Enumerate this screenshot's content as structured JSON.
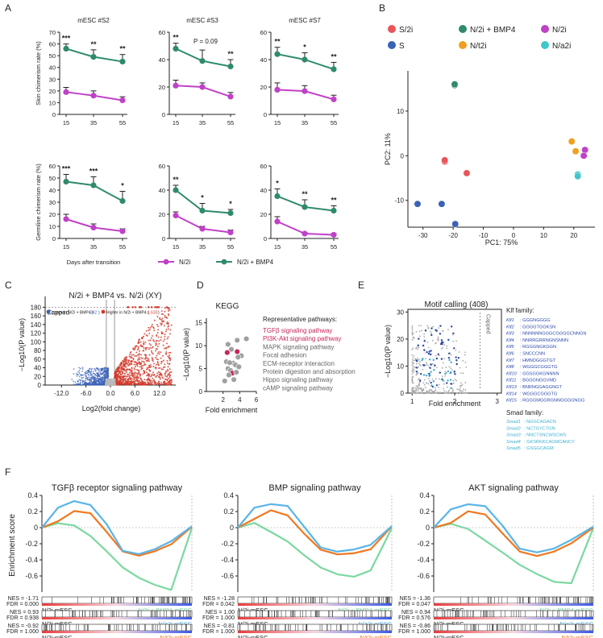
{
  "figure": {
    "panel_letters": [
      "A",
      "B",
      "C",
      "D",
      "E",
      "F"
    ],
    "colors": {
      "n2i": "#c040c8",
      "bmp4": "#2e8b6a",
      "s2i": "#e8555a",
      "s": "#3a62b8",
      "nt2i": "#f0a020",
      "na2i": "#40c8c8",
      "lower": "#3a62b8",
      "higher": "#d23a2a",
      "gsea_blue": "#5ab4e6",
      "gsea_orange": "#f07820",
      "gsea_green": "#7ad8a0",
      "kegg_red": "#c8285a",
      "kegg_gray": "#a0a0a0",
      "klf_blue": "#2d4aa8",
      "smad_cyan": "#40b0d0"
    }
  },
  "panelA": {
    "column_titles": [
      "mESC #S2",
      "mESC #S3",
      "mESC #S7"
    ],
    "row_ylabels": [
      "Skin chimerism rate (%)",
      "Germline chimerism rate (%)"
    ],
    "xlabel": "Days after transition",
    "xticks": [
      "15",
      "35",
      "55"
    ],
    "legend": [
      "N/2i",
      "N/2i + BMP4"
    ],
    "annotation_p": "P = 0.09"
  },
  "chart_data": [
    {
      "type": "line",
      "id": "A-skin-S2",
      "title": "mESC #S2",
      "ylabel": "Skin chimerism rate (%)",
      "ylim": [
        0,
        70
      ],
      "yticks": [
        0,
        10,
        20,
        30,
        40,
        50,
        60,
        70
      ],
      "x": [
        "15",
        "35",
        "55"
      ],
      "series": [
        {
          "name": "N/2i + BMP4",
          "values": [
            56,
            49,
            45
          ],
          "err": [
            4,
            6,
            6
          ]
        },
        {
          "name": "N/2i",
          "values": [
            19,
            16,
            12
          ],
          "err": [
            4,
            4,
            3
          ]
        }
      ],
      "sig": [
        "***",
        "**",
        "**"
      ]
    },
    {
      "type": "line",
      "id": "A-skin-S3",
      "title": "mESC #S3",
      "ylim": [
        0,
        60
      ],
      "yticks": [
        0,
        20,
        40,
        60
      ],
      "x": [
        "15",
        "35",
        "55"
      ],
      "series": [
        {
          "name": "N/2i + BMP4",
          "values": [
            48,
            39,
            35
          ],
          "err": [
            4,
            8,
            5
          ]
        },
        {
          "name": "N/2i",
          "values": [
            21,
            20,
            13
          ],
          "err": [
            4,
            3,
            3
          ]
        }
      ],
      "sig": [
        "**",
        "P = 0.09",
        "**"
      ]
    },
    {
      "type": "line",
      "id": "A-skin-S7",
      "title": "mESC #S7",
      "ylim": [
        0,
        60
      ],
      "yticks": [
        0,
        20,
        40,
        60
      ],
      "x": [
        "15",
        "35",
        "55"
      ],
      "series": [
        {
          "name": "N/2i + BMP4",
          "values": [
            44,
            40,
            33
          ],
          "err": [
            5,
            5,
            5
          ]
        },
        {
          "name": "N/2i",
          "values": [
            18,
            17,
            11
          ],
          "err": [
            5,
            4,
            3
          ]
        }
      ],
      "sig": [
        "**",
        "*",
        "**"
      ]
    },
    {
      "type": "line",
      "id": "A-germ-S2",
      "ylabel": "Germline chimerism rate (%)",
      "ylim": [
        0,
        60
      ],
      "yticks": [
        0,
        10,
        20,
        30,
        40,
        50,
        60
      ],
      "x": [
        "15",
        "35",
        "55"
      ],
      "series": [
        {
          "name": "N/2i + BMP4",
          "values": [
            47,
            44,
            31
          ],
          "err": [
            6,
            7,
            8
          ]
        },
        {
          "name": "N/2i",
          "values": [
            16,
            9,
            6
          ],
          "err": [
            4,
            3,
            2
          ]
        }
      ],
      "sig": [
        "***",
        "***",
        "*"
      ]
    },
    {
      "type": "line",
      "id": "A-germ-S3",
      "ylim": [
        0,
        60
      ],
      "yticks": [
        0,
        20,
        40,
        60
      ],
      "x": [
        "15",
        "35",
        "55"
      ],
      "series": [
        {
          "name": "N/2i + BMP4",
          "values": [
            40,
            23,
            21
          ],
          "err": [
            4,
            6,
            3
          ]
        },
        {
          "name": "N/2i",
          "values": [
            19,
            8,
            5
          ],
          "err": [
            3,
            2,
            2
          ]
        }
      ],
      "sig": [
        "**",
        "*",
        "*"
      ]
    },
    {
      "type": "line",
      "id": "A-germ-S7",
      "ylim": [
        0,
        60
      ],
      "yticks": [
        0,
        20,
        40,
        60
      ],
      "x": [
        "15",
        "35",
        "55"
      ],
      "series": [
        {
          "name": "N/2i + BMP4",
          "values": [
            35,
            26,
            23
          ],
          "err": [
            6,
            6,
            4
          ]
        },
        {
          "name": "N/2i",
          "values": [
            14,
            4,
            3
          ],
          "err": [
            4,
            1,
            1
          ]
        }
      ],
      "sig": [
        "*",
        "**",
        "**"
      ]
    },
    {
      "type": "scatter",
      "id": "B-pca",
      "xlabel": "PC1: 75%",
      "ylabel": "PC2: 11%",
      "xlim": [
        -35,
        27
      ],
      "ylim": [
        -16,
        19
      ],
      "xticks": [
        -30,
        -20,
        -10,
        0,
        10,
        20
      ],
      "yticks": [
        -10,
        0,
        10
      ],
      "legend": [
        {
          "name": "S/2i",
          "color": "#e8555a"
        },
        {
          "name": "N/2i + BMP4",
          "color": "#2e8b6a"
        },
        {
          "name": "N/2i",
          "color": "#c040c8"
        },
        {
          "name": "S",
          "color": "#3a62b8"
        },
        {
          "name": "N/t2i",
          "color": "#f0a020"
        },
        {
          "name": "N/a2i",
          "color": "#40c8c8"
        }
      ],
      "points": [
        {
          "group": "N/2i + BMP4",
          "x": -19.5,
          "y": 15.8
        },
        {
          "group": "N/2i + BMP4",
          "x": -19.5,
          "y": 16.0
        },
        {
          "group": "S/2i",
          "x": -22.8,
          "y": -1.3
        },
        {
          "group": "S/2i",
          "x": -22.8,
          "y": -1.0
        },
        {
          "group": "S/2i",
          "x": -15.5,
          "y": -3.9
        },
        {
          "group": "S",
          "x": -31.8,
          "y": -10.8
        },
        {
          "group": "S",
          "x": -23.8,
          "y": -10.8
        },
        {
          "group": "S",
          "x": -19.3,
          "y": -15.3
        },
        {
          "group": "N/t2i",
          "x": 19.3,
          "y": 3.2
        },
        {
          "group": "N/t2i",
          "x": 20.6,
          "y": 1.0
        },
        {
          "group": "N/2i",
          "x": 23.7,
          "y": 1.3
        },
        {
          "group": "N/2i",
          "x": 23.3,
          "y": 0.0
        },
        {
          "group": "N/a2i",
          "x": 21.3,
          "y": -4.2
        },
        {
          "group": "N/a2i",
          "x": 21.3,
          "y": -4.6
        }
      ]
    },
    {
      "type": "scatter",
      "id": "C-volcano",
      "title": "N/2i + BMP4 vs. N/2i (XY)",
      "xlabel": "Log2(fold change)",
      "ylabel": "−Log10(P value)",
      "xticks": [
        -12,
        -6,
        0,
        6,
        12
      ],
      "yticks": [
        0,
        20,
        40,
        60,
        80,
        100,
        120,
        140,
        160,
        180
      ],
      "xlim": [
        -16,
        16
      ],
      "ylim": [
        0,
        190
      ],
      "legend": [
        {
          "name": "Lower in N/2i + BMP4",
          "count": "342"
        },
        {
          "name": "Higher in N/2i + BMP4",
          "count": "1,633"
        }
      ],
      "capped_label": "Capped"
    },
    {
      "type": "scatter",
      "id": "D-kegg",
      "title": "KEGG",
      "xlabel": "Fold enrichment",
      "ylabel": "−Log10(P value)",
      "xlim": [
        0,
        6
      ],
      "ylim": [
        0,
        16
      ],
      "xticks": [
        2,
        4,
        6
      ],
      "yticks": [
        0,
        5,
        10,
        15
      ],
      "points": [
        {
          "x": 3.7,
          "y": 11.2,
          "highlight": false
        },
        {
          "x": 4.8,
          "y": 11.5,
          "highlight": false
        },
        {
          "x": 2.6,
          "y": 10.3,
          "highlight": false
        },
        {
          "x": 3.0,
          "y": 9.2,
          "highlight": false
        },
        {
          "x": 2.5,
          "y": 8.5,
          "highlight": true
        },
        {
          "x": 3.7,
          "y": 8.7,
          "highlight": true
        },
        {
          "x": 4.2,
          "y": 7.8,
          "highlight": false
        },
        {
          "x": 3.8,
          "y": 7.5,
          "highlight": false
        },
        {
          "x": 2.4,
          "y": 6.5,
          "highlight": false
        },
        {
          "x": 3.2,
          "y": 6.2,
          "highlight": false
        },
        {
          "x": 2.8,
          "y": 6.3,
          "highlight": false
        },
        {
          "x": 3.5,
          "y": 5.8,
          "highlight": false
        },
        {
          "x": 3.9,
          "y": 5.4,
          "highlight": false
        },
        {
          "x": 2.6,
          "y": 5.0,
          "highlight": false
        },
        {
          "x": 2.9,
          "y": 4.6,
          "highlight": false
        },
        {
          "x": 3.1,
          "y": 4.0,
          "highlight": true
        },
        {
          "x": 3.6,
          "y": 4.2,
          "highlight": false
        },
        {
          "x": 2.2,
          "y": 2.3,
          "highlight": false
        },
        {
          "x": 3.3,
          "y": 2.6,
          "highlight": false
        },
        {
          "x": 2.7,
          "y": 3.6,
          "highlight": false
        }
      ],
      "legend_title": "Representative pathways:",
      "pathways": [
        {
          "name": "TGFβ signaling pathway",
          "highlight": true
        },
        {
          "name": "PI3K-Akt signaling pathway",
          "highlight": true
        },
        {
          "name": "MAPK signaling pathway",
          "highlight": false
        },
        {
          "name": "Focal adhesion",
          "highlight": false
        },
        {
          "name": "ECM-receptor interaction",
          "highlight": false
        },
        {
          "name": "Protein digestion and absorption",
          "highlight": false
        },
        {
          "name": "Hippo signaling pathway",
          "highlight": false
        },
        {
          "name": "cAMP signaling pathway",
          "highlight": false
        }
      ]
    },
    {
      "type": "scatter",
      "id": "E-motif",
      "title": "Motif calling (408)",
      "xlabel": "Fold enrichment",
      "ylabel": "−Log10(P value)",
      "xlim": [
        0.9,
        3.1
      ],
      "ylim": [
        0,
        31
      ],
      "xticks": [
        1,
        2,
        3
      ],
      "yticks": [
        0,
        10,
        20,
        30
      ],
      "capped_label": "Capped",
      "klf_title": "Klf family:",
      "klf": [
        {
          "gene": "Klf1",
          "motif": "GGGNGGGG"
        },
        {
          "gene": "Klf2",
          "motif": "GGGGTGGKSN"
        },
        {
          "gene": "Klf3",
          "motif": "NNNNNNGGGCGGGGCNNGN"
        },
        {
          "gene": "Klf4",
          "motif": "NNRRGRRNGNSNNN"
        },
        {
          "gene": "Klf5",
          "motif": "RGGGNGKGGN"
        },
        {
          "gene": "Klf6",
          "motif": "SNCCCNN"
        },
        {
          "gene": "Klf7",
          "motif": "HMNDGGGTGT"
        },
        {
          "gene": "Klf8",
          "motif": "WGGGCGGGTG"
        },
        {
          "gene": "Klf10",
          "motif": "GGSGGKGNNNN"
        },
        {
          "gene": "Klf11",
          "motif": "BGGGNGGVMD"
        },
        {
          "gene": "Klf13",
          "motif": "BNRNGGAGGNGT"
        },
        {
          "gene": "Klf14",
          "motif": "WGGGCGGGTG"
        },
        {
          "gene": "Klf15",
          "motif": "RGGGMGGRGNNGGGGNGG"
        }
      ],
      "smad_title": "Smad family:",
      "smad": [
        {
          "gene": "Smad1",
          "motif": "NGGCAGACN"
        },
        {
          "gene": "Smad2",
          "motif": "NCTGYCTGN"
        },
        {
          "gene": "Smad3",
          "motif": "NNCTSNCWSCWS"
        },
        {
          "gene": "Smad4",
          "motif": "GKSRKKCAGMCANCY"
        },
        {
          "gene": "Smad5",
          "motif": "GSGGCAGM"
        }
      ]
    },
    {
      "type": "line",
      "id": "F-tgfb",
      "title": "TGFβ receptor signaling pathway",
      "ylabel": "Enrichment score",
      "ylim": [
        -0.8,
        0.4
      ],
      "yticks": [
        "0.4",
        "0.2",
        "0",
        "-0.2",
        "-0.4",
        "-0.6"
      ],
      "stats": [
        {
          "nes": "NES = -1.71",
          "fdr": "FDR = 0.000",
          "left": "N/2i-mESC",
          "right": "N/2i + BMP4-mESC"
        },
        {
          "nes": "NES = 0.93",
          "fdr": "FDR = 0.938",
          "left": "N/2i-mESC",
          "right": "N/a2i-mESC"
        },
        {
          "nes": "NES = -0.92",
          "fdr": "FDR = 1.000",
          "left": "N/2i-mESC",
          "right": "N/t2i-mESC"
        }
      ]
    },
    {
      "type": "line",
      "id": "F-bmp",
      "title": "BMP signaling pathway",
      "ylim": [
        -0.8,
        0.4
      ],
      "yticks": [
        "0.4",
        "0.2",
        "0",
        "-0.2",
        "-0.4",
        "-0.6"
      ],
      "stats": [
        {
          "nes": "NES = -1.28",
          "fdr": "FDR = 0.042",
          "left": "N/2i-mESC",
          "right": "N/2i + BMP4-mESC"
        },
        {
          "nes": "NES = 1.00",
          "fdr": "FDR = 1.000",
          "left": "N/2i-mESC",
          "right": "N/a2i-mESC"
        },
        {
          "nes": "NES = -0.81",
          "fdr": "FDR = 1.000",
          "left": "N/2i-mESC",
          "right": "N/t2i-mESC"
        }
      ]
    },
    {
      "type": "line",
      "id": "F-akt",
      "title": "AKT signaling pathway",
      "ylim": [
        -0.8,
        0.4
      ],
      "yticks": [
        "0.4",
        "0.2",
        "0",
        "-0.2",
        "-0.4",
        "-0.6"
      ],
      "stats": [
        {
          "nes": "NES = -1.36",
          "fdr": "FDR = 0.047",
          "left": "N/2i-mESC",
          "right": "N/2i + BMP4-mESC"
        },
        {
          "nes": "NES = 0.94",
          "fdr": "FDR = 0.576",
          "left": "N/2i-mESC",
          "right": "N/a2i-mESC"
        },
        {
          "nes": "NES = -0.86",
          "fdr": "FDR = 1.000",
          "left": "N/2i-mESC",
          "right": "N/t2i-mESC"
        }
      ]
    }
  ]
}
